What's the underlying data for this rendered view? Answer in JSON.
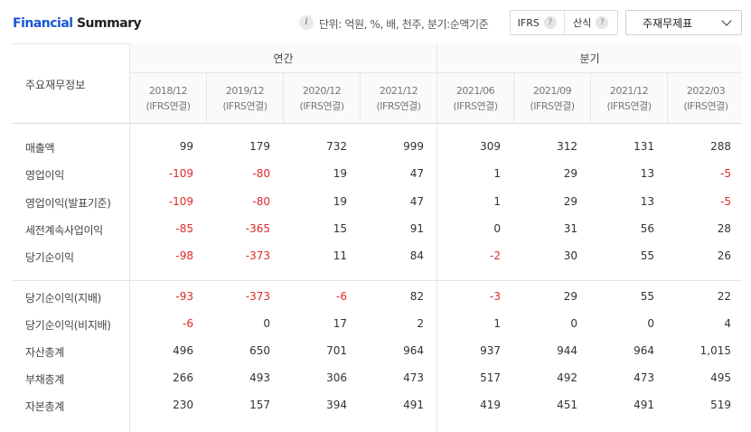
{
  "header": {
    "title_part1": "Financial",
    "title_part2": "Summary",
    "unit_text": "단위: 억원, %, 배, 천주, 분기:순액기준",
    "toggle": {
      "ifrs_label": "IFRS",
      "gaap_label": "산식",
      "help": "?"
    },
    "select_value": "주재무제표",
    "info": "i"
  },
  "table": {
    "row_header": "주요재무정보",
    "groups": {
      "annual": "연간",
      "quarter": "분기"
    },
    "periods": [
      {
        "date": "2018/12",
        "basis": "(IFRS연결)"
      },
      {
        "date": "2019/12",
        "basis": "(IFRS연결)"
      },
      {
        "date": "2020/12",
        "basis": "(IFRS연결)"
      },
      {
        "date": "2021/12",
        "basis": "(IFRS연결)"
      },
      {
        "date": "2021/06",
        "basis": "(IFRS연결)"
      },
      {
        "date": "2021/09",
        "basis": "(IFRS연결)"
      },
      {
        "date": "2021/12",
        "basis": "(IFRS연결)"
      },
      {
        "date": "2022/03",
        "basis": "(IFRS연결)"
      }
    ],
    "rows": [
      {
        "label": "매출액",
        "values": [
          "99",
          "179",
          "732",
          "999",
          "309",
          "312",
          "131",
          "288"
        ]
      },
      {
        "label": "영업이익",
        "values": [
          "-109",
          "-80",
          "19",
          "47",
          "1",
          "29",
          "13",
          "-5"
        ]
      },
      {
        "label": "영업이익(발표기준)",
        "values": [
          "-109",
          "-80",
          "19",
          "47",
          "1",
          "29",
          "13",
          "-5"
        ]
      },
      {
        "label": "세전계속사업이익",
        "values": [
          "-85",
          "-365",
          "15",
          "91",
          "0",
          "31",
          "56",
          "28"
        ]
      },
      {
        "label": "당기순이익",
        "values": [
          "-98",
          "-373",
          "11",
          "84",
          "-2",
          "30",
          "55",
          "26"
        ]
      },
      {
        "label": "당기순이익(지배)",
        "values": [
          "-93",
          "-373",
          "-6",
          "82",
          "-3",
          "29",
          "55",
          "22"
        ]
      },
      {
        "label": "당기순이익(비지배)",
        "values": [
          "-6",
          "0",
          "17",
          "2",
          "1",
          "0",
          "0",
          "4"
        ]
      },
      {
        "label": "자산총계",
        "values": [
          "496",
          "650",
          "701",
          "964",
          "937",
          "944",
          "964",
          "1,015"
        ]
      },
      {
        "label": "부채총계",
        "values": [
          "266",
          "493",
          "306",
          "473",
          "517",
          "492",
          "473",
          "495"
        ]
      },
      {
        "label": "자본총계",
        "values": [
          "230",
          "157",
          "394",
          "491",
          "419",
          "451",
          "491",
          "519"
        ]
      }
    ]
  }
}
